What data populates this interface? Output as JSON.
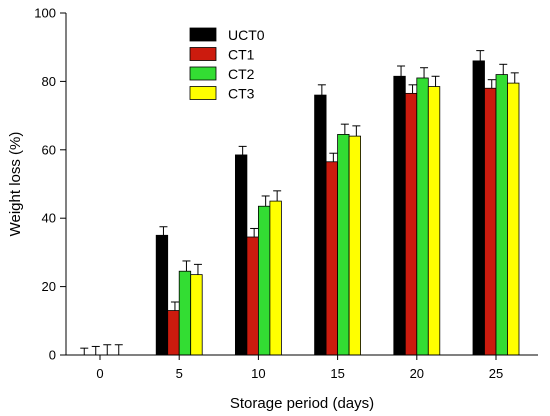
{
  "chart_data": {
    "type": "bar",
    "title": "",
    "xlabel": "Storage period (days)",
    "ylabel": "Weight loss (%)",
    "ylim": [
      0,
      100
    ],
    "yticks": [
      0,
      20,
      40,
      60,
      80,
      100
    ],
    "categories": [
      "0",
      "5",
      "10",
      "15",
      "20",
      "25"
    ],
    "legend_position": "top-left inside plot",
    "series": [
      {
        "name": "UCT0",
        "color": "#000000",
        "values": [
          0,
          35,
          58.5,
          76,
          81.5,
          86
        ],
        "errors": [
          2,
          2.5,
          2.5,
          3,
          3,
          3
        ]
      },
      {
        "name": "CT1",
        "color": "#cc1b0e",
        "values": [
          0,
          13,
          34.5,
          56.5,
          76.5,
          78
        ],
        "errors": [
          2.5,
          2.5,
          2.5,
          2.5,
          2.5,
          2.5
        ]
      },
      {
        "name": "CT2",
        "color": "#33dd33",
        "values": [
          0,
          24.5,
          43.5,
          64.5,
          81,
          82
        ],
        "errors": [
          3,
          3,
          3,
          3,
          3,
          3
        ]
      },
      {
        "name": "CT3",
        "color": "#ffff00",
        "values": [
          0,
          23.5,
          45,
          64,
          78.5,
          79.5
        ],
        "errors": [
          3,
          3,
          3,
          3,
          3,
          3
        ]
      }
    ],
    "error_bars": true,
    "grid": false
  }
}
